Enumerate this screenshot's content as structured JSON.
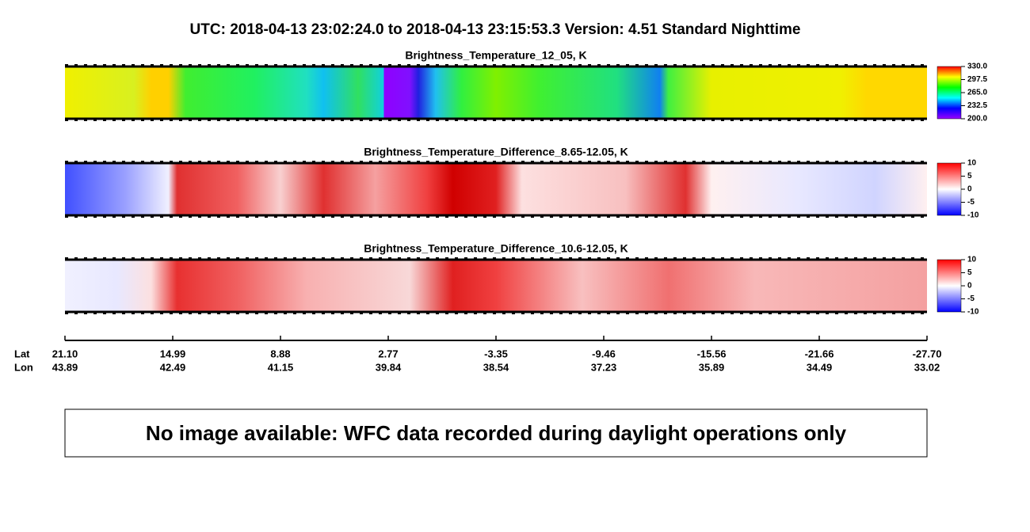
{
  "header": {
    "title": "UTC:  2018-04-13   23:02:24.0  to  2018-04-13   23:15:53.3    Version: 4.51  Standard Nighttime"
  },
  "panels": [
    {
      "title": "Brightness_Temperature_12_05, K",
      "colorbar": {
        "colors": [
          "#9900ff",
          "#0000ff",
          "#00ffff",
          "#00ff00",
          "#ffff00",
          "#ff0000"
        ],
        "ticks": [
          {
            "value": 200,
            "label": "200.0"
          },
          {
            "value": 232.5,
            "label": "232.5"
          },
          {
            "value": 265,
            "label": "265.0"
          },
          {
            "value": 297.5,
            "label": "297.5"
          },
          {
            "value": 330,
            "label": "330.0"
          }
        ]
      }
    },
    {
      "title": "Brightness_Temperature_Difference_8.65-12.05, K",
      "colorbar": {
        "colors": [
          "#0000ff",
          "#ffffff",
          "#ff0000"
        ],
        "ticks": [
          -10,
          -5,
          0,
          5,
          10
        ]
      }
    },
    {
      "title": "Brightness_Temperature_Difference_10.6-12.05, K",
      "colorbar": {
        "colors": [
          "#0000ff",
          "#ffffff",
          "#ff0000"
        ],
        "ticks": [
          -10,
          -5,
          0,
          5,
          10
        ]
      }
    }
  ],
  "axis": {
    "lat_label": "Lat",
    "lon_label": "Lon",
    "lat": [
      "21.10",
      "14.99",
      "8.88",
      "2.77",
      "-3.35",
      "-9.46",
      "-15.56",
      "-21.66",
      "-27.70"
    ],
    "lon": [
      "43.89",
      "42.49",
      "41.15",
      "39.84",
      "38.54",
      "37.23",
      "35.89",
      "34.49",
      "33.02"
    ]
  },
  "notice": "No image available: WFC data recorded during daylight operations only"
}
